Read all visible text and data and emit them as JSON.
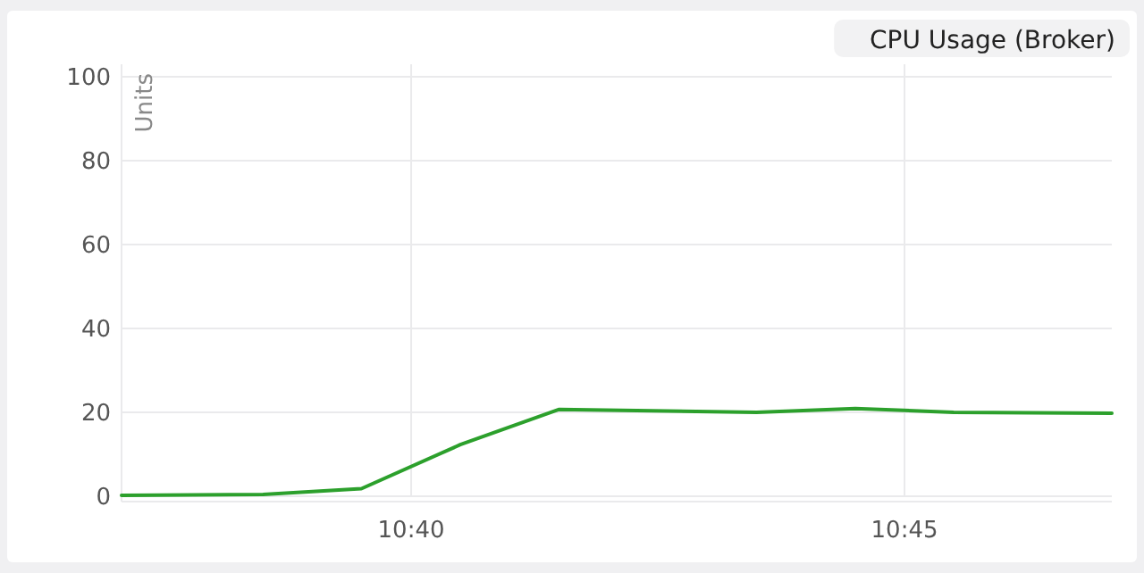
{
  "chart_data": {
    "type": "line",
    "title": "CPU Usage (Broker)",
    "ylabel": "Units",
    "x": [
      10.6178,
      10.6417,
      10.6583,
      10.675,
      10.6917,
      10.725,
      10.7417,
      10.7583,
      10.785
    ],
    "series": [
      {
        "color": "#2ca02c",
        "values": [
          0.2,
          0.4,
          1.8,
          12.3,
          20.7,
          20,
          20.9,
          20,
          19.8
        ]
      }
    ],
    "xlim": [
      10.6178,
      10.785
    ],
    "xticks": [
      {
        "value": 10.6667,
        "label": "10:40"
      },
      {
        "value": 10.75,
        "label": "10:45"
      }
    ],
    "ylim": [
      0,
      100
    ],
    "yticks": [
      0,
      20,
      40,
      60,
      80,
      100
    ],
    "grid": true,
    "marker": "none",
    "line_style": "solid"
  }
}
